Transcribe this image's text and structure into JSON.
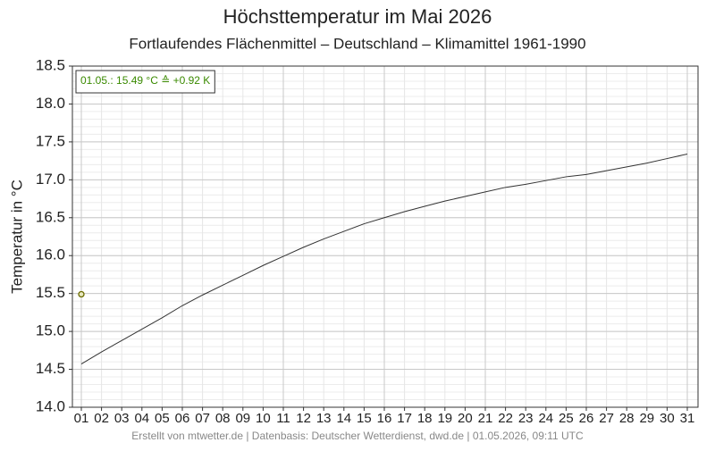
{
  "chart_data": {
    "type": "line",
    "title": "Höchsttemperatur im Mai 2026",
    "subtitle": "Fortlaufendes Flächenmittel – Deutschland – Klimamittel 1961-1990",
    "y_label": "Temperatur in °C",
    "annotation": "01.05.: 15.49 °C ≙ +0.92 K",
    "footer": "Erstellt von mtwetter.de | Datenbasis: Deutscher Wetterdienst, dwd.de | 01.05.2026, 09:11 UTC",
    "categories": [
      "01",
      "02",
      "03",
      "04",
      "05",
      "06",
      "07",
      "08",
      "09",
      "10",
      "11",
      "12",
      "13",
      "14",
      "15",
      "16",
      "17",
      "18",
      "19",
      "20",
      "21",
      "22",
      "23",
      "24",
      "25",
      "26",
      "27",
      "28",
      "29",
      "30",
      "31"
    ],
    "series": [
      {
        "color": "#333333",
        "values": [
          14.57,
          14.73,
          14.88,
          15.03,
          15.18,
          15.34,
          15.48,
          15.61,
          15.74,
          15.87,
          15.99,
          16.11,
          16.22,
          16.32,
          16.42,
          16.5,
          16.58,
          16.65,
          16.72,
          16.78,
          16.84,
          16.9,
          16.94,
          16.99,
          17.04,
          17.07,
          17.12,
          17.17,
          17.22,
          17.28,
          17.34
        ]
      },
      {
        "color": "#6b6b00",
        "marker": "point",
        "values": [
          15.49,
          null,
          null,
          null,
          null,
          null,
          null,
          null,
          null,
          null,
          null,
          null,
          null,
          null,
          null,
          null,
          null,
          null,
          null,
          null,
          null,
          null,
          null,
          null,
          null,
          null,
          null,
          null,
          null,
          null,
          null
        ]
      }
    ],
    "ylim": [
      14.0,
      18.5
    ],
    "yticks": [
      {
        "value": 14.0,
        "label": "14.0"
      },
      {
        "value": 14.5,
        "label": "14.5"
      },
      {
        "value": 15.0,
        "label": "15.0"
      },
      {
        "value": 15.5,
        "label": "15.5"
      },
      {
        "value": 16.0,
        "label": "16.0"
      },
      {
        "value": 16.5,
        "label": "16.5"
      },
      {
        "value": 17.0,
        "label": "17.0"
      },
      {
        "value": 17.5,
        "label": "17.5"
      },
      {
        "value": 18.0,
        "label": "18.0"
      },
      {
        "value": 18.5,
        "label": "18.5"
      }
    ],
    "grid": true
  }
}
